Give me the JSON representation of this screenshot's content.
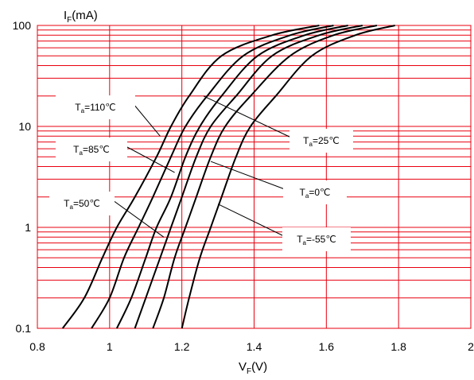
{
  "chart_data": {
    "type": "line",
    "title": "",
    "xlabel": {
      "main": "V",
      "sub": "F",
      "unit": "(V)"
    },
    "ylabel": {
      "main": "I",
      "sub": "F",
      "unit": "(mA)"
    },
    "xlim": [
      0.8,
      2.0
    ],
    "ylim": [
      0.1,
      100
    ],
    "yscale": "log",
    "grid": true,
    "grid_color": "#e8000f",
    "line_color": "#000000",
    "x_ticks": [
      "0.8",
      "1",
      "1.2",
      "1.4",
      "1.6",
      "1.8",
      "2"
    ],
    "x_tick_values": [
      0.8,
      1.0,
      1.2,
      1.4,
      1.6,
      1.8,
      2.0
    ],
    "y_ticks": [
      "0.1",
      "1",
      "10",
      "100"
    ],
    "y_tick_values": [
      0.1,
      1,
      10,
      100
    ],
    "series": [
      {
        "label": {
          "main": "T",
          "sub": "a",
          "rest": "=110℃"
        },
        "points": [
          [
            0.87,
            0.1
          ],
          [
            0.93,
            0.2
          ],
          [
            0.98,
            0.5
          ],
          [
            1.02,
            1
          ],
          [
            1.07,
            2
          ],
          [
            1.13,
            5
          ],
          [
            1.17,
            10
          ],
          [
            1.22,
            20
          ],
          [
            1.31,
            50
          ],
          [
            1.45,
            80
          ],
          [
            1.58,
            100
          ]
        ]
      },
      {
        "label": {
          "main": "T",
          "sub": "a",
          "rest": "=85℃"
        },
        "points": [
          [
            0.95,
            0.1
          ],
          [
            1.0,
            0.2
          ],
          [
            1.04,
            0.5
          ],
          [
            1.08,
            1
          ],
          [
            1.12,
            2
          ],
          [
            1.17,
            5
          ],
          [
            1.21,
            10
          ],
          [
            1.27,
            20
          ],
          [
            1.37,
            50
          ],
          [
            1.5,
            80
          ],
          [
            1.62,
            100
          ]
        ]
      },
      {
        "label": {
          "main": "T",
          "sub": "a",
          "rest": "=50℃"
        },
        "points": [
          [
            1.02,
            0.1
          ],
          [
            1.06,
            0.2
          ],
          [
            1.1,
            0.5
          ],
          [
            1.13,
            1
          ],
          [
            1.17,
            2
          ],
          [
            1.21,
            5
          ],
          [
            1.25,
            10
          ],
          [
            1.31,
            20
          ],
          [
            1.41,
            50
          ],
          [
            1.54,
            80
          ],
          [
            1.66,
            100
          ]
        ]
      },
      {
        "label": {
          "main": "T",
          "sub": "a",
          "rest": "=25℃"
        },
        "points": [
          [
            1.07,
            0.1
          ],
          [
            1.1,
            0.2
          ],
          [
            1.14,
            0.5
          ],
          [
            1.17,
            1
          ],
          [
            1.2,
            2
          ],
          [
            1.24,
            5
          ],
          [
            1.28,
            10
          ],
          [
            1.35,
            20
          ],
          [
            1.45,
            50
          ],
          [
            1.58,
            80
          ],
          [
            1.7,
            100
          ]
        ]
      },
      {
        "label": {
          "main": "T",
          "sub": "a",
          "rest": "=0℃"
        },
        "points": [
          [
            1.12,
            0.1
          ],
          [
            1.15,
            0.2
          ],
          [
            1.18,
            0.5
          ],
          [
            1.21,
            1
          ],
          [
            1.24,
            2
          ],
          [
            1.28,
            5
          ],
          [
            1.32,
            10
          ],
          [
            1.39,
            20
          ],
          [
            1.5,
            50
          ],
          [
            1.62,
            80
          ],
          [
            1.74,
            100
          ]
        ]
      },
      {
        "label": {
          "main": "T",
          "sub": "a",
          "rest": "=-55℃"
        },
        "points": [
          [
            1.2,
            0.1
          ],
          [
            1.22,
            0.2
          ],
          [
            1.25,
            0.5
          ],
          [
            1.28,
            1
          ],
          [
            1.31,
            2
          ],
          [
            1.35,
            5
          ],
          [
            1.39,
            10
          ],
          [
            1.46,
            20
          ],
          [
            1.56,
            50
          ],
          [
            1.68,
            80
          ],
          [
            1.79,
            100
          ]
        ]
      }
    ],
    "annotations": [
      {
        "series": 0,
        "at": [
          1.14,
          8.0
        ]
      },
      {
        "series": 1,
        "at": [
          1.18,
          3.5
        ]
      },
      {
        "series": 2,
        "at": [
          1.15,
          0.8
        ]
      },
      {
        "series": 3,
        "at": [
          1.26,
          20.0
        ]
      },
      {
        "series": 4,
        "at": [
          1.28,
          4.5
        ]
      },
      {
        "series": 5,
        "at": [
          1.3,
          1.7
        ]
      }
    ]
  }
}
